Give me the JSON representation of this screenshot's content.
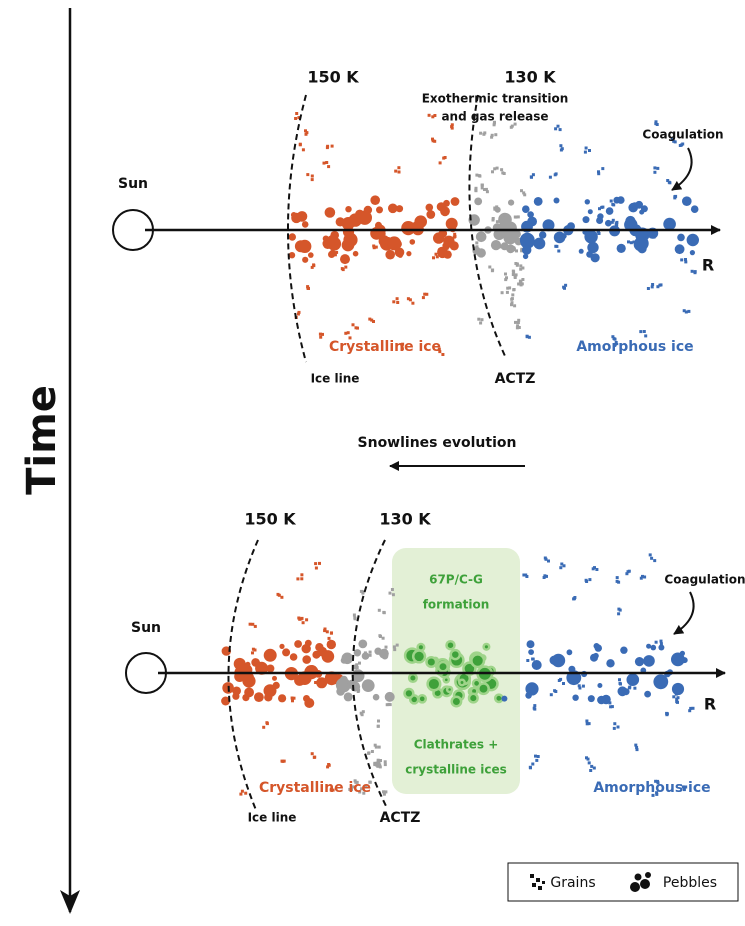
{
  "time_axis": {
    "label": "Time"
  },
  "panels": [
    {
      "sun": "Sun",
      "temperatures": [
        "150 K",
        "130 K"
      ],
      "annotation": [
        "Exothermic transition",
        "and gas release"
      ],
      "coagulation": "Coagulation",
      "axis_label": "R",
      "crystalline": "Crystalline ice",
      "amorphous": "Amorphous ice",
      "ice_line": "Ice line",
      "actz": "ACTZ"
    },
    {
      "sun": "Sun",
      "temperatures": [
        "150 K",
        "130 K"
      ],
      "formation": [
        "67P/C-G",
        "formation"
      ],
      "clathrates": [
        "Clathrates +",
        "crystalline ices"
      ],
      "coagulation": "Coagulation",
      "axis_label": "R",
      "crystalline": "Crystalline ice",
      "amorphous": "Amorphous ice",
      "ice_line": "Ice line",
      "actz": "ACTZ"
    }
  ],
  "transition": "Snowlines evolution",
  "legend": [
    "Grains",
    "Pebbles"
  ]
}
